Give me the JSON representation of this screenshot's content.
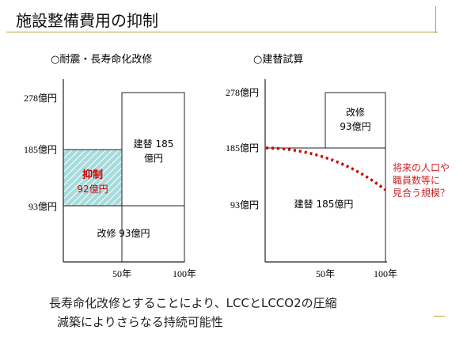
{
  "slide": {
    "title": "施設整備費用の抑制",
    "accent_color": "#b8a43a"
  },
  "left_panel": {
    "title": "○耐震・長寿命化改修",
    "y_labels": [
      "278億円",
      "185億円",
      "93億円"
    ],
    "x_labels": [
      "50年",
      "100年"
    ],
    "rebuild_text": [
      "建替 185",
      "億円"
    ],
    "saving_text": [
      "抑制",
      "92億円"
    ],
    "renovation_text": "改修 93億円",
    "saving_fill": "#a8dcdc",
    "saving_label_color": "#cc0000"
  },
  "right_panel": {
    "title": "○建替試算",
    "y_labels": [
      "278億円",
      "185億円",
      "93億円"
    ],
    "x_labels": [
      "50年",
      "100年"
    ],
    "renovation_text": [
      "改修",
      "93億円"
    ],
    "rebuild_text": "建替 185億円",
    "note_lines": [
      "将来の人口や",
      "職員数等に",
      "見合う規模？"
    ],
    "note_color": "#cc2222",
    "curve_color": "#cc0000"
  },
  "footer": {
    "line1": "長寿命化改修とすることにより、LCCとLCCO2の圧縮",
    "line2": "減築によりさらなる持続可能性"
  }
}
